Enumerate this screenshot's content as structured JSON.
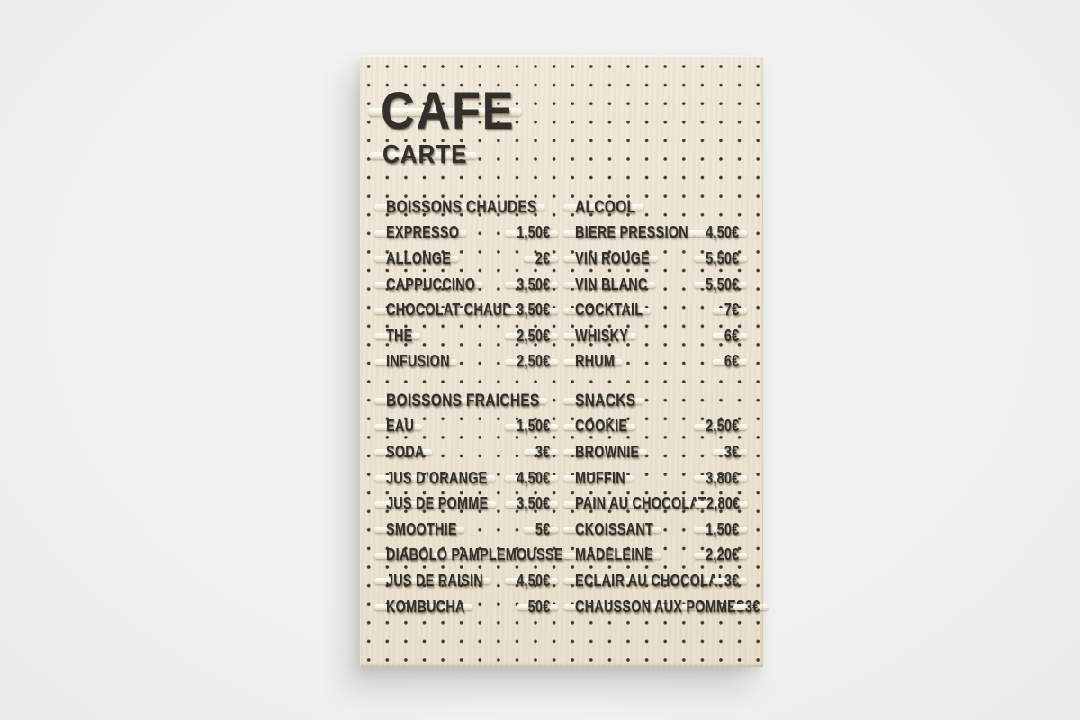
{
  "menu_board": {
    "title": "CAFE",
    "subtitle": "CARTE",
    "sections": [
      {
        "columns": [
          {
            "header": "BOISSONS CHAUDES",
            "items": [
              {
                "label": "EXPRESSO",
                "price": "1,50€"
              },
              {
                "label": "ALLONGE",
                "price": "2€"
              },
              {
                "label": "CAPPUCCINO",
                "price": "3,50€"
              },
              {
                "label": "CHOCOLAT CHAUD",
                "price": "3,50€"
              },
              {
                "label": "THE",
                "price": "2,50€"
              },
              {
                "label": "INFUSION",
                "price": "2,50€"
              }
            ]
          },
          {
            "header": "ALCOOL",
            "items": [
              {
                "label": "BIERE PRESSION",
                "price": "4,50€"
              },
              {
                "label": "VIN ROUGE",
                "price": "5,50€"
              },
              {
                "label": "VIN BLANC",
                "price": "5,50€"
              },
              {
                "label": "COCKTAIL",
                "price": "7€"
              },
              {
                "label": "WHISKY",
                "price": "6€"
              },
              {
                "label": "RHUM",
                "price": "6€"
              }
            ]
          }
        ]
      },
      {
        "columns": [
          {
            "header": "BOISSONS FRAICHES",
            "items": [
              {
                "label": "EAU",
                "price": "1,50€"
              },
              {
                "label": "SODA",
                "price": "3€"
              },
              {
                "label": "JUS D’ORANGE",
                "price": "4,50€"
              },
              {
                "label": "JUS DE POMME",
                "price": "3,50€"
              },
              {
                "label": "SMOOTHIE",
                "price": "5€"
              },
              {
                "label": "DIABOLO PAMPLEMOUSSE",
                "price": ""
              },
              {
                "label": "JUS DE RAISIN",
                "price": "4,50€"
              },
              {
                "label": "KOMBUCHA",
                "price": "50€"
              }
            ]
          },
          {
            "header": "SNACKS",
            "items": [
              {
                "label": "COOKIE",
                "price": "2,50€"
              },
              {
                "label": "BROWNIE",
                "price": "3€"
              },
              {
                "label": "MUFFIN",
                "price": "3,80€"
              },
              {
                "label": "PAIN AU CHOCOLAT",
                "price": "2,80€"
              },
              {
                "label": "CKOISSANT",
                "price": "1,50€"
              },
              {
                "label": "MADELEINE",
                "price": "2,20€"
              },
              {
                "label": "ECLAIR AU CHOCOLAI",
                "price": "3€"
              },
              {
                "label": "CHAUSSON AUX POMMES",
                "price": "3€"
              }
            ]
          }
        ]
      }
    ]
  },
  "colors": {
    "background": "#f0f0ef",
    "board": "#ebe4d3",
    "peg_holes": "#2e281e",
    "letters": "#33302b",
    "rails": "#f6f2e6"
  }
}
